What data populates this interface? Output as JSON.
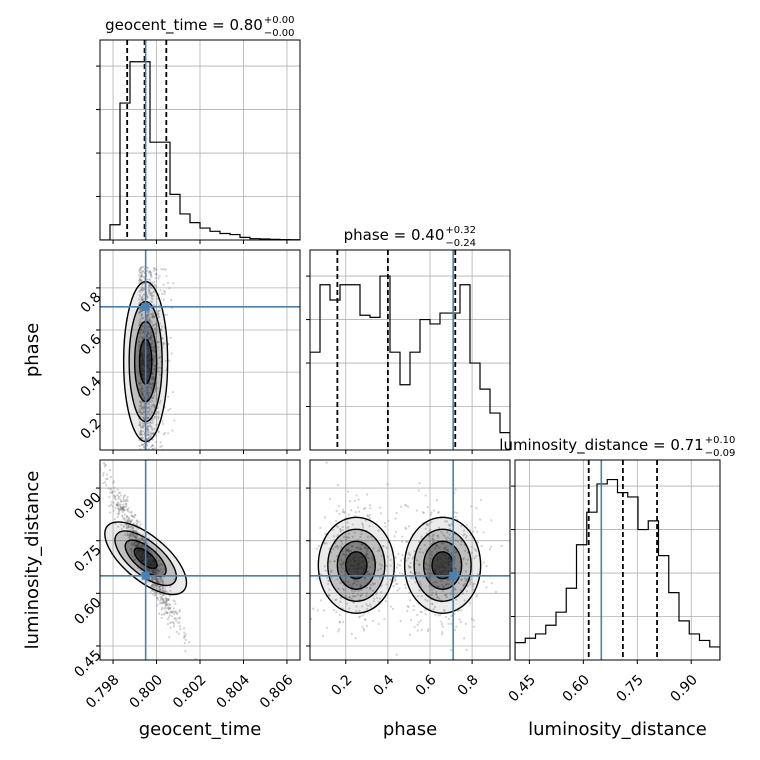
{
  "chart_data": {
    "type": "corner",
    "parameters": [
      "geocent_time",
      "phase",
      "luminosity_distance"
    ],
    "colors": {
      "truth": "#4682b4",
      "line": "#000000",
      "grid": "#b0b0b0",
      "points": "#7f7f7f"
    },
    "grid": true,
    "ranges": {
      "geocent_time": [
        0.7974,
        0.8066
      ],
      "phase": [
        0.03,
        0.98
      ],
      "luminosity_distance": [
        0.41,
        0.98
      ]
    },
    "ticks": {
      "geocent_time": {
        "values": [
          0.798,
          0.8,
          0.802,
          0.804,
          0.806
        ],
        "labels": [
          "0.798",
          "0.800",
          "0.802",
          "0.804",
          "0.806"
        ]
      },
      "phase": {
        "values": [
          0.2,
          0.4,
          0.6,
          0.8
        ],
        "labels": [
          "0.2",
          "0.4",
          "0.6",
          "0.8"
        ]
      },
      "luminosity_distance": {
        "values": [
          0.45,
          0.6,
          0.75,
          0.9
        ],
        "labels": [
          "0.45",
          "0.60",
          "0.75",
          "0.90"
        ]
      }
    },
    "titles": {
      "geocent_time": {
        "name": "geocent_time",
        "median": "0.80",
        "plus": "+0.00",
        "minus": "−0.00"
      },
      "phase": {
        "name": "phase",
        "median": "0.40",
        "plus": "+0.32",
        "minus": "−0.24"
      },
      "luminosity_distance": {
        "name": "luminosity_distance",
        "median": "0.71",
        "plus": "+0.10",
        "minus": "−0.09"
      }
    },
    "truths": {
      "geocent_time": 0.7995,
      "phase": 0.71,
      "luminosity_distance": 0.65
    },
    "quantiles": {
      "geocent_time": [
        0.79865,
        0.79945,
        0.80045
      ],
      "phase": [
        0.16,
        0.4,
        0.72
      ],
      "luminosity_distance": [
        0.615,
        0.71,
        0.805
      ]
    },
    "histograms": {
      "geocent_time": {
        "edges": [
          0.7974,
          0.79786,
          0.79832,
          0.79878,
          0.79924,
          0.7997,
          0.80016,
          0.80062,
          0.80108,
          0.80154,
          0.802,
          0.80246,
          0.80292,
          0.80338,
          0.80384,
          0.8043,
          0.80476,
          0.80522,
          0.80568,
          0.80614,
          0.8066
        ],
        "counts": [
          0,
          0.07,
          0.63,
          0.82,
          0.82,
          0.45,
          0.45,
          0.21,
          0.12,
          0.08,
          0.055,
          0.04,
          0.03,
          0.025,
          0.012,
          0.006,
          0.005,
          0.003,
          0.002,
          0.001
        ]
      },
      "phase": {
        "edges": [
          0.03,
          0.0775,
          0.125,
          0.1725,
          0.22,
          0.2675,
          0.315,
          0.3625,
          0.41,
          0.4575,
          0.505,
          0.5525,
          0.6,
          0.6475,
          0.695,
          0.7425,
          0.79,
          0.8375,
          0.885,
          0.9325,
          0.98
        ],
        "counts": [
          0.45,
          0.76,
          0.69,
          0.76,
          0.76,
          0.62,
          0.61,
          0.8,
          0.45,
          0.3,
          0.45,
          0.6,
          0.58,
          0.63,
          0.63,
          0.76,
          0.4,
          0.28,
          0.17,
          0.08
        ]
      },
      "luminosity_distance": {
        "edges": [
          0.41,
          0.4385,
          0.467,
          0.4955,
          0.524,
          0.5525,
          0.581,
          0.6095,
          0.638,
          0.6665,
          0.695,
          0.7235,
          0.752,
          0.7805,
          0.809,
          0.8375,
          0.866,
          0.8945,
          0.923,
          0.9515,
          0.98
        ],
        "counts": [
          0.08,
          0.1,
          0.12,
          0.16,
          0.22,
          0.33,
          0.53,
          0.68,
          0.81,
          0.83,
          0.77,
          0.75,
          0.6,
          0.64,
          0.48,
          0.31,
          0.18,
          0.12,
          0.09,
          0.06
        ]
      }
    },
    "pairs": [
      {
        "x": "geocent_time",
        "y": "phase",
        "shape": "vertical-band",
        "center": [
          0.7995,
          0.45
        ],
        "spread": [
          0.0006,
          0.24
        ]
      },
      {
        "x": "geocent_time",
        "y": "luminosity_distance",
        "shape": "anticorrelated",
        "center": [
          0.7995,
          0.7
        ],
        "spread": [
          0.0008,
          0.09
        ]
      },
      {
        "x": "phase",
        "y": "luminosity_distance",
        "shape": "bimodal",
        "centers": [
          [
            0.25,
            0.68
          ],
          [
            0.66,
            0.68
          ]
        ],
        "spread": [
          0.13,
          0.09
        ]
      }
    ]
  }
}
